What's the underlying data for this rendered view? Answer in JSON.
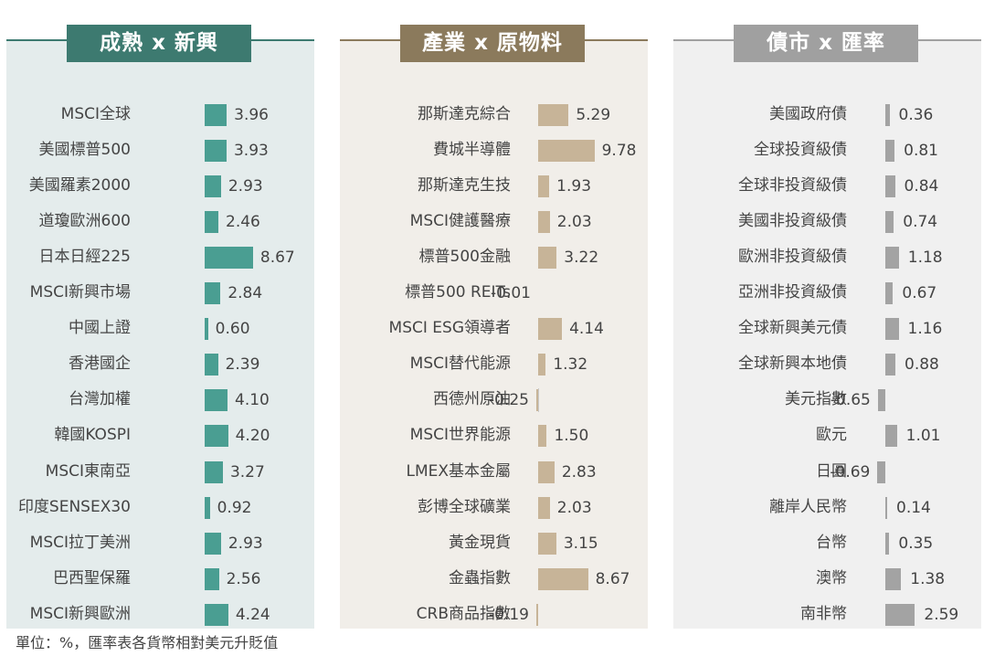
{
  "footnote": "單位：%，匯率表各貨幣相對美元升貶值",
  "chart_data": [
    {
      "type": "bar",
      "title": "成熟 x 新興",
      "color": "#4a9e92",
      "title_bg": "#3d7a70",
      "panel_bg": "#e4ecec",
      "categories": [
        "MSCI全球",
        "美國標普500",
        "美國羅素2000",
        "道瓊歐洲600",
        "日本日經225",
        "MSCI新興市場",
        "中國上證",
        "香港國企",
        "台灣加權",
        "韓國KOSPI",
        "MSCI東南亞",
        "印度SENSEX30",
        "MSCI拉丁美洲",
        "巴西聖保羅",
        "MSCI新興歐洲"
      ],
      "values": [
        3.96,
        3.93,
        2.93,
        2.46,
        8.67,
        2.84,
        0.6,
        2.39,
        4.1,
        4.2,
        3.27,
        0.92,
        2.93,
        2.56,
        4.24
      ],
      "value_labels": [
        "3.96",
        "3.93",
        "2.93",
        "2.46",
        "8.67",
        "2.84",
        "0.60",
        "2.39",
        "4.10",
        "4.20",
        "3.27",
        "0.92",
        "2.93",
        "2.56",
        "4.24"
      ]
    },
    {
      "type": "bar",
      "title": "產業 x 原物料",
      "color": "#c7b498",
      "title_bg": "#8b7a5c",
      "panel_bg": "#f1eee9",
      "categories": [
        "那斯達克綜合",
        "費城半導體",
        "那斯達克生技",
        "MSCI健護醫療",
        "標普500金融",
        "標普500 REITs",
        "MSCI ESG領導者",
        "MSCI替代能源",
        "西德州原油",
        "MSCI世界能源",
        "LMEX基本金屬",
        "彭博全球礦業",
        "黃金現貨",
        "金蟲指數",
        "CRB商品指數"
      ],
      "values": [
        5.29,
        9.78,
        1.93,
        2.03,
        3.22,
        -0.01,
        4.14,
        1.32,
        -0.25,
        1.5,
        2.83,
        2.03,
        3.15,
        8.67,
        -0.19
      ],
      "value_labels": [
        "5.29",
        "9.78",
        "1.93",
        "2.03",
        "3.22",
        "-0.01",
        "4.14",
        "1.32",
        "-0.25",
        "1.50",
        "2.83",
        "2.03",
        "3.15",
        "8.67",
        "-0.19"
      ]
    },
    {
      "type": "bar",
      "title": "債市 x 匯率",
      "color": "#a3a3a3",
      "title_bg": "#a0a0a0",
      "panel_bg": "#f0f0f0",
      "categories": [
        "美國政府債",
        "全球投資級債",
        "全球非投資級債",
        "美國非投資級債",
        "歐洲非投資級債",
        "亞洲非投資級債",
        "全球新興美元債",
        "全球新興本地債",
        "美元指數",
        "歐元",
        "日圓",
        "離岸人民幣",
        "台幣",
        "澳幣",
        "南非幣"
      ],
      "values": [
        0.36,
        0.81,
        0.84,
        0.74,
        1.18,
        0.67,
        1.16,
        0.88,
        -0.65,
        1.01,
        -0.69,
        0.14,
        0.35,
        1.38,
        2.59
      ],
      "value_labels": [
        "0.36",
        "0.81",
        "0.84",
        "0.74",
        "1.18",
        "0.67",
        "1.16",
        "0.88",
        "-0.65",
        "1.01",
        "-0.69",
        "0.14",
        "0.35",
        "1.38",
        "2.59"
      ]
    }
  ]
}
